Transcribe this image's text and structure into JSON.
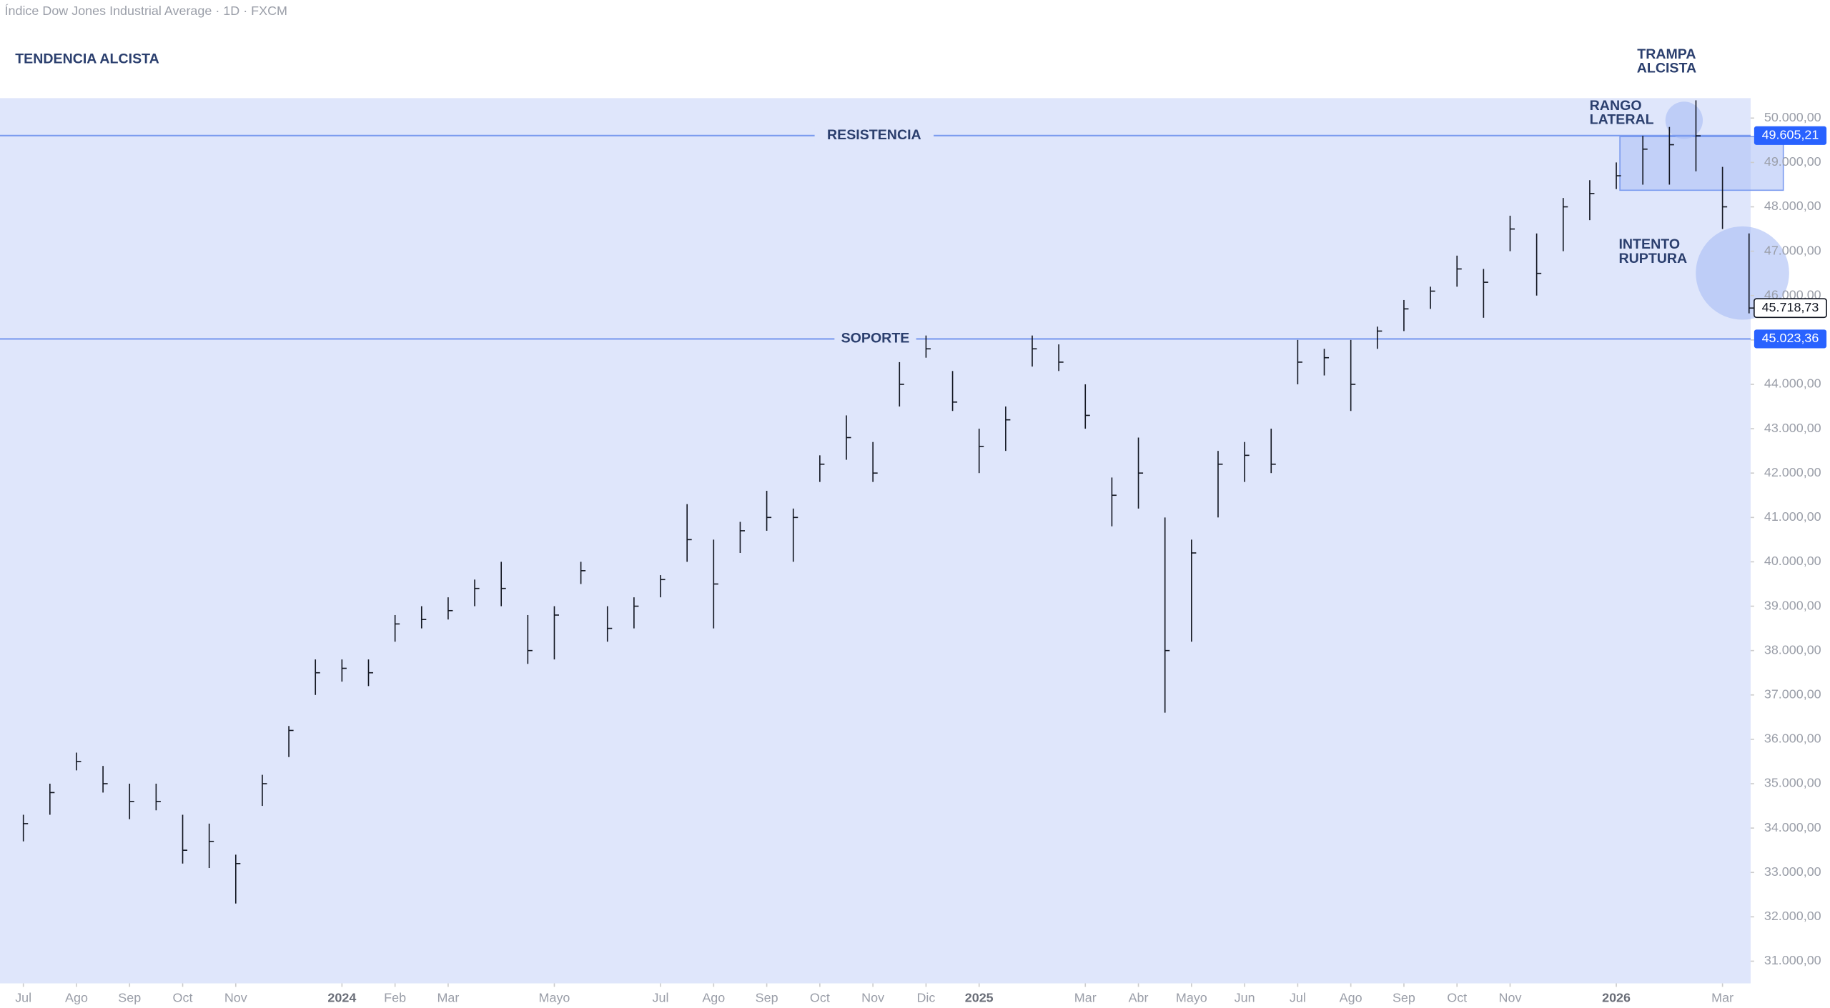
{
  "chart_data": {
    "type": "ohlc",
    "title": "Índice Dow Jones Industrial Average · 1D · FXCM",
    "x": [
      0,
      0.5,
      1,
      1.5,
      2,
      2.5,
      3,
      3.5,
      4,
      4.5,
      5,
      5.5,
      6,
      6.5,
      7,
      7.5,
      8,
      8.5,
      9,
      9.5,
      10,
      10.5,
      11,
      11.5,
      12,
      12.5,
      13,
      13.5,
      14,
      14.5,
      15,
      15.5,
      16,
      16.5,
      17,
      17.5,
      18,
      18.5,
      19,
      19.5,
      20,
      20.5,
      21,
      21.5,
      22,
      22.5,
      23,
      23.5,
      24,
      24.5,
      25,
      25.5,
      26,
      26.5,
      27,
      27.5,
      28,
      28.5,
      29,
      29.5,
      30,
      30.5,
      31,
      31.5,
      32,
      32.5
    ],
    "high": [
      34300,
      35000,
      35700,
      35400,
      35000,
      35000,
      34300,
      34100,
      33400,
      35200,
      36300,
      37800,
      37800,
      37800,
      38800,
      39000,
      39200,
      39600,
      40000,
      38800,
      39000,
      40000,
      39000,
      39200,
      39700,
      41300,
      40500,
      40900,
      41600,
      41200,
      42400,
      43300,
      42700,
      44500,
      45100,
      44300,
      43000,
      43500,
      45100,
      44900,
      44000,
      41900,
      42800,
      41000,
      40500,
      42500,
      42700,
      43000,
      45000,
      44800,
      45000,
      45300,
      45900,
      46200,
      46900,
      46600,
      47800,
      47400,
      48200,
      48600,
      49000,
      49600,
      49800,
      50400,
      48900,
      47400
    ],
    "low": [
      33700,
      34300,
      35300,
      34800,
      34200,
      34400,
      33200,
      33100,
      32300,
      34500,
      35600,
      37000,
      37300,
      37200,
      38200,
      38500,
      38700,
      39000,
      39000,
      37700,
      37800,
      39500,
      38200,
      38500,
      39200,
      40000,
      38500,
      40200,
      40700,
      40000,
      41800,
      42300,
      41800,
      43500,
      44600,
      43400,
      42000,
      42500,
      44400,
      44300,
      43000,
      40800,
      41200,
      36600,
      38200,
      41000,
      41800,
      42000,
      44000,
      44200,
      43400,
      44800,
      45200,
      45700,
      46200,
      45500,
      47000,
      46000,
      47000,
      47700,
      48400,
      48500,
      48500,
      48800,
      47500,
      45600
    ],
    "close": [
      34100,
      34800,
      35500,
      35000,
      34600,
      34600,
      33500,
      33700,
      33200,
      35000,
      36200,
      37500,
      37600,
      37500,
      38600,
      38700,
      38900,
      39400,
      39400,
      38000,
      38800,
      39800,
      38500,
      39000,
      39600,
      40500,
      39500,
      40700,
      41000,
      41000,
      42200,
      42800,
      42000,
      44000,
      44800,
      43600,
      42600,
      43200,
      44800,
      44500,
      43300,
      41500,
      42000,
      38000,
      40200,
      42200,
      42400,
      42200,
      44500,
      44600,
      44000,
      45200,
      45700,
      46100,
      46600,
      46300,
      47500,
      46500,
      48000,
      48300,
      48700,
      49300,
      49400,
      49600,
      48000,
      45718.73
    ],
    "color": "#131722",
    "xlim": [
      -0.44,
      32.53
    ],
    "ylim": [
      30500,
      50450
    ],
    "xticks": [
      {
        "value": 0,
        "label": "Jul"
      },
      {
        "value": 1,
        "label": "Ago"
      },
      {
        "value": 2,
        "label": "Sep"
      },
      {
        "value": 3,
        "label": "Oct"
      },
      {
        "value": 4,
        "label": "Nov"
      },
      {
        "value": 6,
        "label": "2024"
      },
      {
        "value": 7,
        "label": "Feb"
      },
      {
        "value": 8,
        "label": "Mar"
      },
      {
        "value": 10,
        "label": "Mayo"
      },
      {
        "value": 12,
        "label": "Jul"
      },
      {
        "value": 13,
        "label": "Ago"
      },
      {
        "value": 14,
        "label": "Sep"
      },
      {
        "value": 15,
        "label": "Oct"
      },
      {
        "value": 16,
        "label": "Nov"
      },
      {
        "value": 17,
        "label": "Dic"
      },
      {
        "value": 18,
        "label": "2025"
      },
      {
        "value": 20,
        "label": "Mar"
      },
      {
        "value": 21,
        "label": "Abr"
      },
      {
        "value": 22,
        "label": "Mayo"
      },
      {
        "value": 23,
        "label": "Jun"
      },
      {
        "value": 24,
        "label": "Jul"
      },
      {
        "value": 25,
        "label": "Ago"
      },
      {
        "value": 26,
        "label": "Sep"
      },
      {
        "value": 27,
        "label": "Oct"
      },
      {
        "value": 28,
        "label": "Nov"
      },
      {
        "value": 30,
        "label": "2026"
      },
      {
        "value": 32,
        "label": "Mar"
      }
    ],
    "yticks": [
      {
        "value": 31000,
        "label": "31.000,00"
      },
      {
        "value": 32000,
        "label": "32.000,00"
      },
      {
        "value": 33000,
        "label": "33.000,00"
      },
      {
        "value": 34000,
        "label": "34.000,00"
      },
      {
        "value": 35000,
        "label": "35.000,00"
      },
      {
        "value": 36000,
        "label": "36.000,00"
      },
      {
        "value": 37000,
        "label": "37.000,00"
      },
      {
        "value": 38000,
        "label": "38.000,00"
      },
      {
        "value": 39000,
        "label": "39.000,00"
      },
      {
        "value": 40000,
        "label": "40.000,00"
      },
      {
        "value": 41000,
        "label": "41.000,00"
      },
      {
        "value": 42000,
        "label": "42.000,00"
      },
      {
        "value": 43000,
        "label": "43.000,00"
      },
      {
        "value": 44000,
        "label": "44.000,00"
      },
      {
        "value": 45000,
        "label": "45.000,00"
      },
      {
        "value": 46000,
        "label": "46.000,00"
      },
      {
        "value": 47000,
        "label": "47.000,00"
      },
      {
        "value": 48000,
        "label": "48.000,00"
      },
      {
        "value": 49000,
        "label": "49.000,00"
      },
      {
        "value": 50000,
        "label": "50.000,00"
      }
    ],
    "lines": [
      {
        "value": 49605.21,
        "label": "49.605,21",
        "text": "RESISTENCIA"
      },
      {
        "value": 45023.36,
        "label": "45.023,36",
        "text": "SOPORTE"
      }
    ],
    "last_price": {
      "value": 45718.73,
      "label": "45.718,73"
    },
    "annotations": [
      {
        "lines": [
          "TENDENCIA ALCISTA"
        ]
      },
      {
        "lines": [
          "TRAMPA",
          "ALCISTA"
        ]
      },
      {
        "lines": [
          "RANGO",
          "LATERAL"
        ]
      },
      {
        "lines": [
          "INTENTO",
          "RUPTURA"
        ]
      }
    ]
  }
}
